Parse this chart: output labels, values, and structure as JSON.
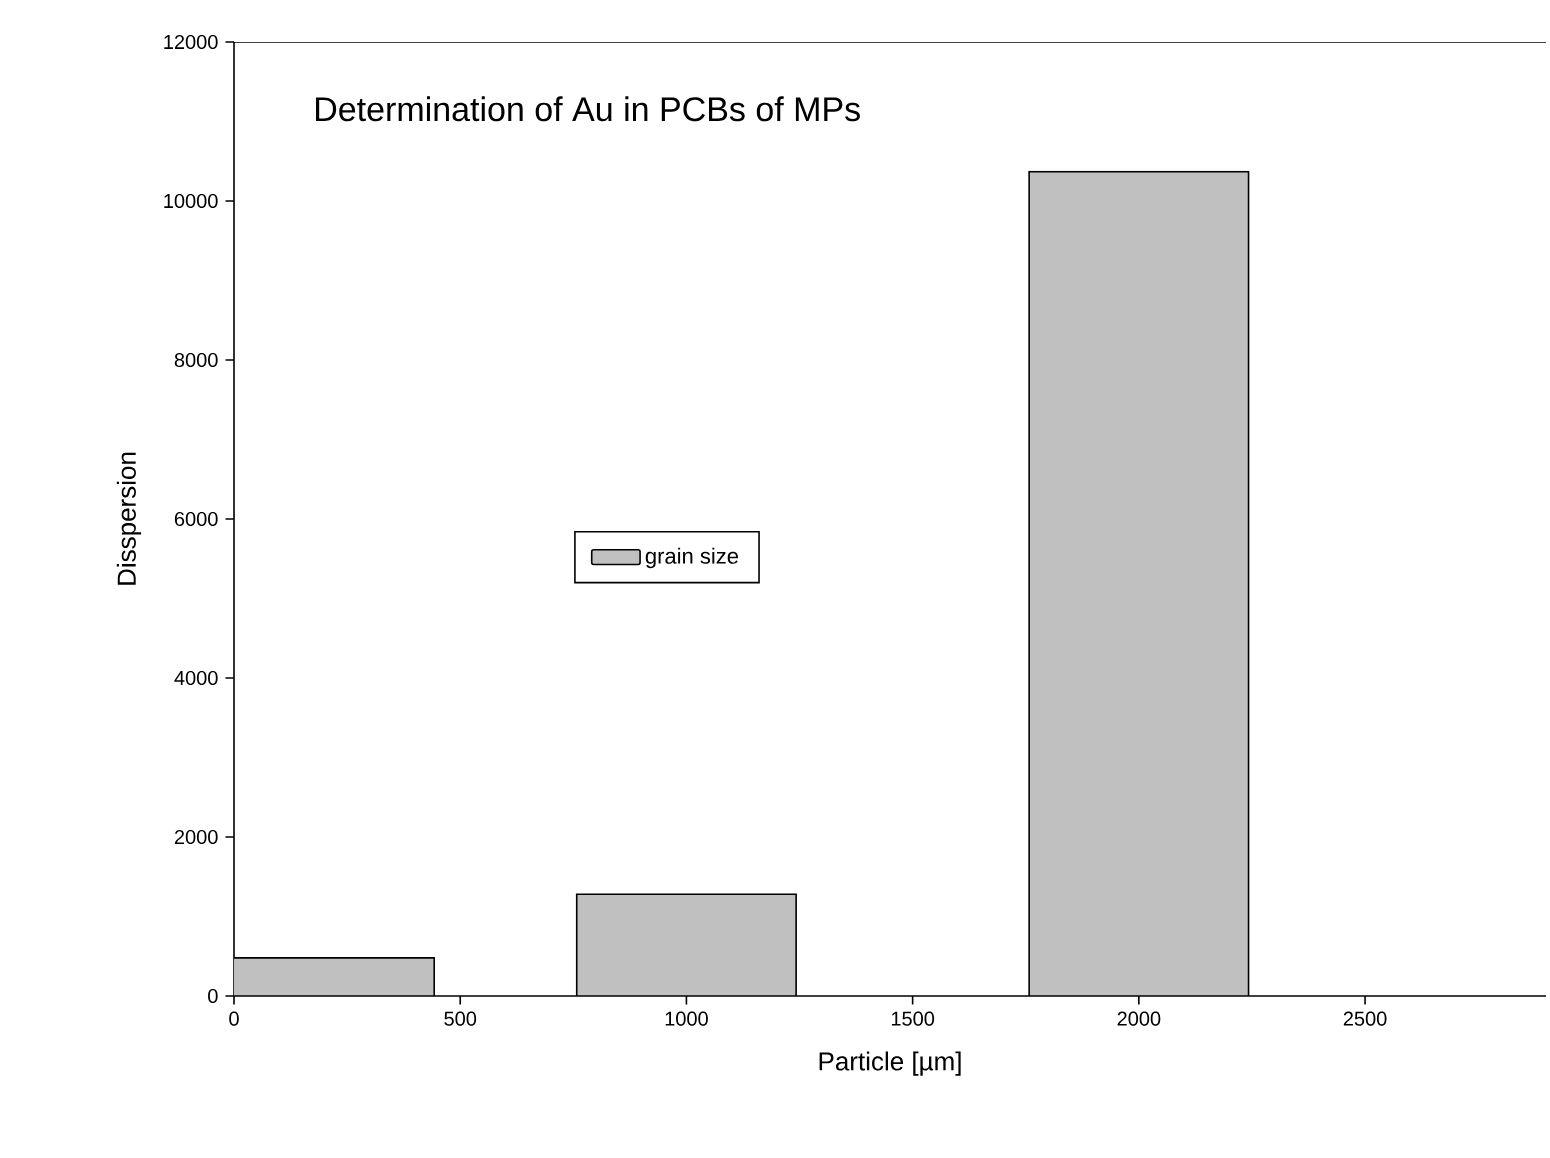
{
  "chart_data": {
    "type": "bar",
    "title": "Determination of Au in PCBs of MPs",
    "xlabel": "Particle [µm]",
    "ylabel": "Disspersion",
    "x": [
      200,
      1000,
      2000
    ],
    "series": [
      {
        "name": "grain size",
        "color": "#c0c0c0",
        "values": [
          480,
          1280,
          10370
        ]
      }
    ],
    "xlim": [
      0,
      2900
    ],
    "ylim": [
      0,
      12000
    ],
    "xticks": [
      0,
      500,
      1000,
      1500,
      2000,
      2500
    ],
    "yticks": [
      0,
      2000,
      4000,
      6000,
      8000,
      10000,
      12000
    ],
    "legend": "center",
    "grid": false
  }
}
